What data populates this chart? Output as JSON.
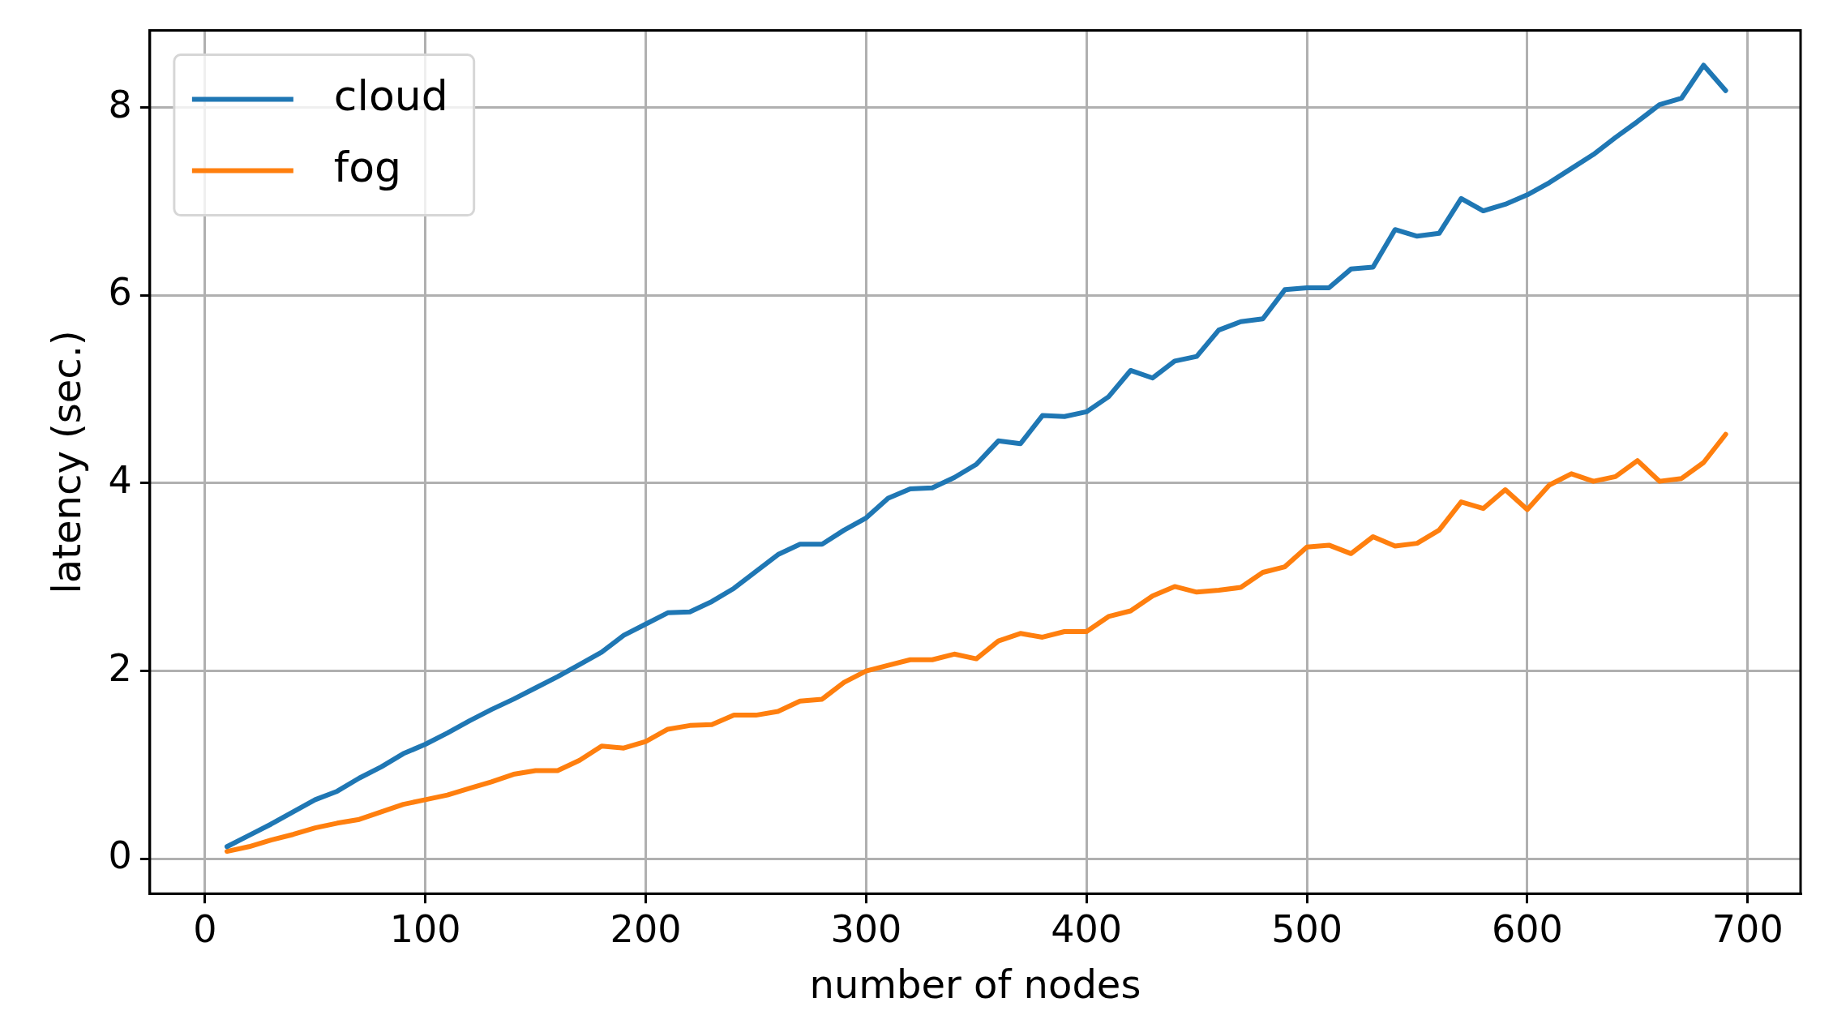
{
  "chart_data": {
    "type": "line",
    "xlabel": "number of nodes",
    "ylabel": "latency (sec.)",
    "x": [
      10,
      20,
      30,
      40,
      50,
      60,
      70,
      80,
      90,
      100,
      110,
      120,
      130,
      140,
      150,
      160,
      170,
      180,
      190,
      200,
      210,
      220,
      230,
      240,
      250,
      260,
      270,
      280,
      290,
      300,
      310,
      320,
      330,
      340,
      350,
      360,
      370,
      380,
      390,
      400,
      410,
      420,
      430,
      440,
      450,
      460,
      470,
      480,
      490,
      500,
      510,
      520,
      530,
      540,
      550,
      560,
      570,
      580,
      590,
      600,
      610,
      620,
      630,
      640,
      650,
      660,
      670,
      680,
      690
    ],
    "series": [
      {
        "name": "cloud",
        "color": "#1f77b4",
        "values": [
          0.13,
          0.25,
          0.37,
          0.5,
          0.63,
          0.72,
          0.86,
          0.98,
          1.12,
          1.22,
          1.34,
          1.47,
          1.59,
          1.7,
          1.82,
          1.94,
          2.07,
          2.2,
          2.38,
          2.5,
          2.62,
          2.63,
          2.74,
          2.88,
          3.06,
          3.24,
          3.35,
          3.35,
          3.5,
          3.63,
          3.84,
          3.94,
          3.95,
          4.06,
          4.2,
          4.45,
          4.42,
          4.72,
          4.71,
          4.76,
          4.92,
          5.2,
          5.12,
          5.3,
          5.35,
          5.63,
          5.72,
          5.75,
          6.06,
          6.08,
          6.08,
          6.28,
          6.3,
          6.7,
          6.63,
          6.66,
          7.03,
          6.9,
          6.97,
          7.07,
          7.2,
          7.35,
          7.5,
          7.68,
          7.85,
          8.03,
          8.1,
          8.45,
          8.18
        ]
      },
      {
        "name": "fog",
        "color": "#ff7f0e",
        "values": [
          0.08,
          0.13,
          0.2,
          0.26,
          0.33,
          0.38,
          0.42,
          0.5,
          0.58,
          0.63,
          0.68,
          0.75,
          0.82,
          0.9,
          0.94,
          0.94,
          1.05,
          1.2,
          1.18,
          1.25,
          1.38,
          1.42,
          1.43,
          1.53,
          1.53,
          1.57,
          1.68,
          1.7,
          1.88,
          2.0,
          2.06,
          2.12,
          2.12,
          2.18,
          2.13,
          2.32,
          2.4,
          2.36,
          2.42,
          2.42,
          2.58,
          2.64,
          2.8,
          2.9,
          2.84,
          2.86,
          2.89,
          3.05,
          3.11,
          3.32,
          3.34,
          3.25,
          3.43,
          3.33,
          3.36,
          3.5,
          3.8,
          3.73,
          3.93,
          3.72,
          3.98,
          4.1,
          4.02,
          4.07,
          4.24,
          4.02,
          4.05,
          4.22,
          4.52
        ]
      }
    ],
    "xlim": [
      -25,
      724
    ],
    "ylim": [
      -0.37,
      8.82
    ],
    "xticks": [
      0,
      100,
      200,
      300,
      400,
      500,
      600,
      700
    ],
    "yticks": [
      0,
      2,
      4,
      6,
      8
    ],
    "grid": true,
    "legend": "top left",
    "marker": "none",
    "line_style": "solid"
  }
}
